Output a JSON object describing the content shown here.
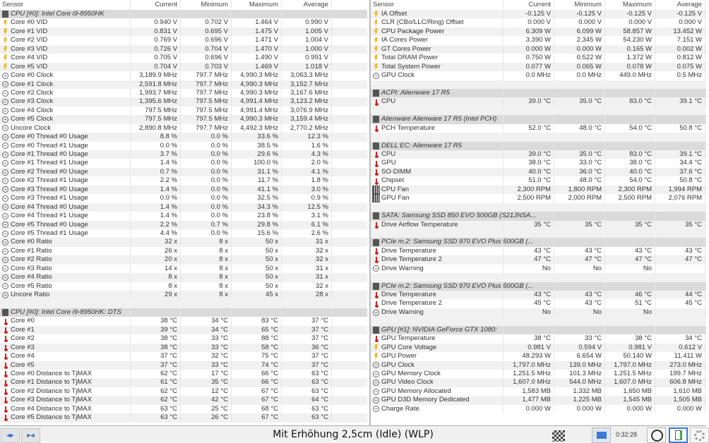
{
  "columns": [
    "Sensor",
    "Current",
    "Minimum",
    "Maximum",
    "Average"
  ],
  "left": {
    "rows": [
      [
        "group",
        "CPU [#0]: Intel Core i9-8950HK"
      ],
      [
        "volt",
        "Core #0 VID",
        "0.940 V",
        "0.702 V",
        "1.464 V",
        "0.990 V"
      ],
      [
        "volt",
        "Core #1 VID",
        "0.831 V",
        "0.695 V",
        "1.475 V",
        "1.005 V"
      ],
      [
        "volt",
        "Core #2 VID",
        "0.769 V",
        "0.696 V",
        "1.471 V",
        "1.004 V"
      ],
      [
        "volt",
        "Core #3 VID",
        "0.726 V",
        "0.704 V",
        "1.470 V",
        "1.000 V"
      ],
      [
        "volt",
        "Core #4 VID",
        "0.705 V",
        "0.696 V",
        "1.490 V",
        "0.991 V"
      ],
      [
        "volt",
        "Core #5 VID",
        "0.704 V",
        "0.703 V",
        "1.469 V",
        "1.018 V"
      ],
      [
        "clock",
        "Core #0 Clock",
        "3,189.9 MHz",
        "797.7 MHz",
        "4,990.3 MHz",
        "3,063.3 MHz"
      ],
      [
        "clock",
        "Core #1 Clock",
        "2,591.8 MHz",
        "797.7 MHz",
        "4,990.3 MHz",
        "3,152.7 MHz"
      ],
      [
        "clock",
        "Core #2 Clock",
        "1,993.7 MHz",
        "797.7 MHz",
        "4,990.3 MHz",
        "3,167.6 MHz"
      ],
      [
        "clock",
        "Core #3 Clock",
        "1,395.6 MHz",
        "797.5 MHz",
        "4,991.4 MHz",
        "3,123.2 MHz"
      ],
      [
        "clock",
        "Core #4 Clock",
        "797.5 MHz",
        "797.5 MHz",
        "4,991.4 MHz",
        "3,076.9 MHz"
      ],
      [
        "clock",
        "Core #5 Clock",
        "797.5 MHz",
        "797.5 MHz",
        "4,990.3 MHz",
        "3,159.4 MHz"
      ],
      [
        "clock",
        "Uncore Clock",
        "2,890.8 MHz",
        "797.7 MHz",
        "4,492.3 MHz",
        "2,770.2 MHz"
      ],
      [
        "clock",
        "Core #0 Thread #0 Usage",
        "8.8 %",
        "0.0 %",
        "33.6 %",
        "12.3 %"
      ],
      [
        "clock",
        "Core #0 Thread #1 Usage",
        "0.0 %",
        "0.0 %",
        "38.5 %",
        "1.6 %"
      ],
      [
        "clock",
        "Core #1 Thread #0 Usage",
        "3.7 %",
        "0.0 %",
        "29.6 %",
        "4.3 %"
      ],
      [
        "clock",
        "Core #1 Thread #1 Usage",
        "1.4 %",
        "0.0 %",
        "100.0 %",
        "2.0 %"
      ],
      [
        "clock",
        "Core #2 Thread #0 Usage",
        "0.7 %",
        "0.0 %",
        "31.1 %",
        "4.1 %"
      ],
      [
        "clock",
        "Core #2 Thread #1 Usage",
        "2.2 %",
        "0.0 %",
        "11.7 %",
        "1.8 %"
      ],
      [
        "clock",
        "Core #3 Thread #0 Usage",
        "1.4 %",
        "0.0 %",
        "41.1 %",
        "3.0 %"
      ],
      [
        "clock",
        "Core #3 Thread #1 Usage",
        "0.0 %",
        "0.0 %",
        "32.5 %",
        "0.9 %"
      ],
      [
        "clock",
        "Core #4 Thread #0 Usage",
        "1.4 %",
        "0.0 %",
        "34.3 %",
        "12.5 %"
      ],
      [
        "clock",
        "Core #4 Thread #1 Usage",
        "1.4 %",
        "0.0 %",
        "23.8 %",
        "3.1 %"
      ],
      [
        "clock",
        "Core #5 Thread #0 Usage",
        "2.2 %",
        "0.7 %",
        "29.8 %",
        "6.1 %"
      ],
      [
        "clock",
        "Core #5 Thread #1 Usage",
        "4.4 %",
        "0.0 %",
        "15.6 %",
        "2.6 %"
      ],
      [
        "clock",
        "Core #0 Ratio",
        "32 x",
        "8 x",
        "50 x",
        "31 x"
      ],
      [
        "clock",
        "Core #1 Ratio",
        "26 x",
        "8 x",
        "50 x",
        "32 x"
      ],
      [
        "clock",
        "Core #2 Ratio",
        "20 x",
        "8 x",
        "50 x",
        "32 x"
      ],
      [
        "clock",
        "Core #3 Ratio",
        "14 x",
        "8 x",
        "50 x",
        "31 x"
      ],
      [
        "clock",
        "Core #4 Ratio",
        "8 x",
        "8 x",
        "50 x",
        "31 x"
      ],
      [
        "clock",
        "Core #5 Ratio",
        "8 x",
        "8 x",
        "50 x",
        "32 x"
      ],
      [
        "clock",
        "Uncore Ratio",
        "29 x",
        "8 x",
        "45 x",
        "28 x"
      ],
      [
        "blank"
      ],
      [
        "group",
        "CPU [#0]: Intel Core i9-8950HK: DTS"
      ],
      [
        "temp",
        "Core #0",
        "38 °C",
        "34 °C",
        "83 °C",
        "37 °C"
      ],
      [
        "temp",
        "Core #1",
        "39 °C",
        "34 °C",
        "65 °C",
        "37 °C"
      ],
      [
        "temp",
        "Core #2",
        "38 °C",
        "33 °C",
        "88 °C",
        "37 °C"
      ],
      [
        "temp",
        "Core #3",
        "38 °C",
        "33 °C",
        "58 °C",
        "36 °C"
      ],
      [
        "temp",
        "Core #4",
        "37 °C",
        "32 °C",
        "75 °C",
        "37 °C"
      ],
      [
        "temp",
        "Core #5",
        "37 °C",
        "33 °C",
        "74 °C",
        "37 °C"
      ],
      [
        "temp",
        "Core #0 Distance to TjMAX",
        "62 °C",
        "17 °C",
        "66 °C",
        "63 °C"
      ],
      [
        "temp",
        "Core #1 Distance to TjMAX",
        "61 °C",
        "35 °C",
        "66 °C",
        "63 °C"
      ],
      [
        "temp",
        "Core #2 Distance to TjMAX",
        "62 °C",
        "12 °C",
        "67 °C",
        "63 °C"
      ],
      [
        "temp",
        "Core #3 Distance to TjMAX",
        "62 °C",
        "42 °C",
        "67 °C",
        "64 °C"
      ],
      [
        "temp",
        "Core #4 Distance to TjMAX",
        "63 °C",
        "25 °C",
        "68 °C",
        "63 °C"
      ],
      [
        "temp",
        "Core #5 Distance to TjMAX",
        "63 °C",
        "26 °C",
        "67 °C",
        "63 °C"
      ]
    ]
  },
  "right": {
    "rows": [
      [
        "volt",
        "IA Offset",
        "-0.125 V",
        "-0.125 V",
        "-0.125 V",
        "-0.125 V"
      ],
      [
        "volt",
        "CLR (CBo/LLC/Ring) Offset",
        "0.000 V",
        "0.000 V",
        "0.000 V",
        "0.000 V"
      ],
      [
        "volt",
        "CPU Package Power",
        "6.309 W",
        "6.099 W",
        "58.857 W",
        "13.452 W"
      ],
      [
        "volt",
        "IA Cores Power",
        "3.390 W",
        "2.345 W",
        "54.230 W",
        "7.151 W"
      ],
      [
        "volt",
        "GT Cores Power",
        "0.000 W",
        "0.000 W",
        "0.165 W",
        "0.002 W"
      ],
      [
        "volt",
        "Total DRAM Power",
        "0.750 W",
        "0.522 W",
        "1.372 W",
        "0.812 W"
      ],
      [
        "volt",
        "Total System Power",
        "0.077 W",
        "0.065 W",
        "0.078 W",
        "0.075 W"
      ],
      [
        "clock",
        "GPU Clock",
        "0.0 MHz",
        "0.0 MHz",
        "449.0 MHz",
        "0.5 MHz"
      ],
      [
        "blank"
      ],
      [
        "group",
        "ACPI: Alienware 17 R5"
      ],
      [
        "temp",
        "CPU",
        "39.0 °C",
        "35.0 °C",
        "83.0 °C",
        "39.1 °C"
      ],
      [
        "blank"
      ],
      [
        "group",
        "Alienware Alienware 17 R5 (Intel PCH)"
      ],
      [
        "temp",
        "PCH Temperature",
        "52.0 °C",
        "48.0 °C",
        "54.0 °C",
        "50.8 °C"
      ],
      [
        "blank"
      ],
      [
        "group",
        "DELL EC: Alienware 17 R5"
      ],
      [
        "temp",
        "CPU",
        "39.0 °C",
        "35.0 °C",
        "83.0 °C",
        "39.1 °C"
      ],
      [
        "temp",
        "GPU",
        "38.0 °C",
        "33.0 °C",
        "38.0 °C",
        "34.4 °C"
      ],
      [
        "temp",
        "SO-DIMM",
        "40.0 °C",
        "36.0 °C",
        "40.0 °C",
        "37.6 °C"
      ],
      [
        "temp",
        "Chipset",
        "51.0 °C",
        "48.0 °C",
        "54.0 °C",
        "50.8 °C"
      ],
      [
        "fan",
        "CPU Fan",
        "2,300 RPM",
        "1,800 RPM",
        "2,300 RPM",
        "1,994 RPM"
      ],
      [
        "fan",
        "GPU Fan",
        "2,500 RPM",
        "2,000 RPM",
        "2,500 RPM",
        "2,076 RPM"
      ],
      [
        "blank"
      ],
      [
        "group",
        "SATA: Samsung SSD 850 EVO 500GB (S21JNSA..."
      ],
      [
        "temp",
        "Drive Airflow Temperature",
        "35 °C",
        "35 °C",
        "35 °C",
        "35 °C"
      ],
      [
        "blank"
      ],
      [
        "group",
        "PCIe m.2: Samsung SSD 970 EVO Plus 500GB (..."
      ],
      [
        "temp",
        "Drive Temperature",
        "43 °C",
        "43 °C",
        "43 °C",
        "43 °C"
      ],
      [
        "temp",
        "Drive Temperature 2",
        "47 °C",
        "47 °C",
        "47 °C",
        "47 °C"
      ],
      [
        "clock",
        "Drive Warning",
        "No",
        "No",
        "No",
        ""
      ],
      [
        "blank"
      ],
      [
        "group",
        "PCIe m.2: Samsung SSD 970 EVO Plus 500GB (..."
      ],
      [
        "temp",
        "Drive Temperature",
        "43 °C",
        "43 °C",
        "46 °C",
        "44 °C"
      ],
      [
        "temp",
        "Drive Temperature 2",
        "45 °C",
        "43 °C",
        "51 °C",
        "45 °C"
      ],
      [
        "clock",
        "Drive Warning",
        "No",
        "No",
        "No",
        ""
      ],
      [
        "blank"
      ],
      [
        "group",
        "GPU [#1]: NVIDIA GeForce GTX 1080:"
      ],
      [
        "temp",
        "GPU Temperature",
        "38 °C",
        "33 °C",
        "38 °C",
        "34 °C"
      ],
      [
        "volt",
        "GPU Core Voltage",
        "0.981 V",
        "0.594 V",
        "0.981 V",
        "0.612 V"
      ],
      [
        "volt",
        "GPU Power",
        "48.293 W",
        "6.654 W",
        "50.140 W",
        "11.411 W"
      ],
      [
        "clock",
        "GPU Clock",
        "1,797.0 MHz",
        "139.0 MHz",
        "1,797.0 MHz",
        "273.0 MHz"
      ],
      [
        "clock",
        "GPU Memory Clock",
        "1,251.5 MHz",
        "101.3 MHz",
        "1,251.5 MHz",
        "199.7 MHz"
      ],
      [
        "clock",
        "GPU Video Clock",
        "1,607.0 MHz",
        "544.0 MHz",
        "1,607.0 MHz",
        "606.8 MHz"
      ],
      [
        "clock",
        "GPU Memory Allocated",
        "1,583 MB",
        "1,332 MB",
        "1,650 MB",
        "1,610 MB"
      ],
      [
        "clock",
        "GPU D3D Memory Dedicated",
        "1,477 MB",
        "1,225 MB",
        "1,545 MB",
        "1,505 MB"
      ],
      [
        "clock",
        "Charge Rate",
        "0.000 W",
        "0.000 W",
        "0.000 W",
        "0.000 W"
      ]
    ]
  },
  "statusbar": {
    "title": "Mit Erhöhung 2,5cm (Idle) (WLP)",
    "timer": "0:32:28",
    "nav_back": "⇔",
    "nav_fwd": "⇒⇐"
  }
}
